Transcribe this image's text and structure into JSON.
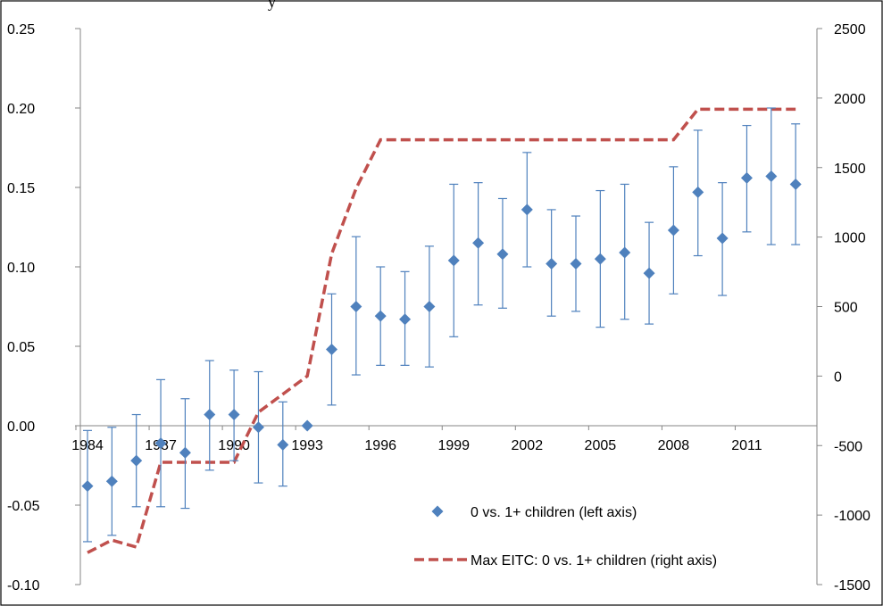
{
  "title_fragment": "y",
  "chart_data": {
    "type": "scatter",
    "x": [
      1984,
      1985,
      1986,
      1987,
      1988,
      1989,
      1990,
      1991,
      1992,
      1993,
      1994,
      1995,
      1996,
      1997,
      1998,
      1999,
      2000,
      2001,
      2002,
      2003,
      2004,
      2005,
      2006,
      2007,
      2008,
      2009,
      2010,
      2011,
      2012,
      2013
    ],
    "x_tick_labels": [
      "1984",
      "1987",
      "1990",
      "1993",
      "1996",
      "1999",
      "2002",
      "2005",
      "2008",
      "2011"
    ],
    "x_tick_years": [
      1984,
      1987,
      1990,
      1993,
      1996,
      1999,
      2002,
      2005,
      2008,
      2011
    ],
    "left_axis": {
      "ylim": [
        -0.1,
        0.25
      ],
      "tick_labels": [
        "0.25",
        "0.20",
        "0.15",
        "0.10",
        "0.05",
        "0.00",
        "-0.05",
        "-0.10"
      ]
    },
    "right_axis": {
      "ylim": [
        -1500,
        2500
      ],
      "tick_labels": [
        "2500",
        "2000",
        "1500",
        "1000",
        "500",
        "0",
        "-500",
        "-1000",
        "-1500"
      ]
    },
    "series": [
      {
        "name": "0 vs. 1+ children (left axis)",
        "axis": "left",
        "marker": "diamond",
        "color": "#4F81BD",
        "values": [
          -0.038,
          -0.035,
          -0.022,
          -0.011,
          -0.017,
          0.007,
          0.007,
          -0.001,
          -0.012,
          0.0,
          0.048,
          0.075,
          0.069,
          0.067,
          0.075,
          0.104,
          0.115,
          0.108,
          0.136,
          0.102,
          0.102,
          0.105,
          0.109,
          0.096,
          0.123,
          0.147,
          0.118,
          0.156,
          0.157,
          0.152
        ],
        "error_low": [
          -0.073,
          -0.069,
          -0.051,
          -0.051,
          -0.052,
          -0.028,
          -0.022,
          -0.036,
          -0.038,
          null,
          0.013,
          0.032,
          0.038,
          0.038,
          0.037,
          0.056,
          0.076,
          0.074,
          0.1,
          0.069,
          0.072,
          0.062,
          0.067,
          0.064,
          0.083,
          0.107,
          0.082,
          0.122,
          0.114,
          0.114
        ],
        "error_high": [
          -0.003,
          -0.001,
          0.007,
          0.029,
          0.017,
          0.041,
          0.035,
          0.034,
          0.015,
          null,
          0.083,
          0.119,
          0.1,
          0.097,
          0.113,
          0.152,
          0.153,
          0.143,
          0.172,
          0.136,
          0.132,
          0.148,
          0.152,
          0.128,
          0.163,
          0.186,
          0.153,
          0.189,
          0.2,
          0.19
        ]
      },
      {
        "name": "Max EITC: 0 vs. 1+ children (right axis)",
        "axis": "right",
        "type": "line",
        "dash": "dashed",
        "color": "#C0504D",
        "values": [
          -1270,
          -1180,
          -1230,
          -620,
          -620,
          -620,
          -620,
          -260,
          -130,
          0,
          880,
          1350,
          1700,
          1700,
          1700,
          1700,
          1700,
          1700,
          1700,
          1700,
          1700,
          1700,
          1700,
          1700,
          1700,
          1920,
          1920,
          1920,
          1920,
          1920
        ]
      }
    ],
    "legend_position": "bottom-right",
    "grid": false
  }
}
